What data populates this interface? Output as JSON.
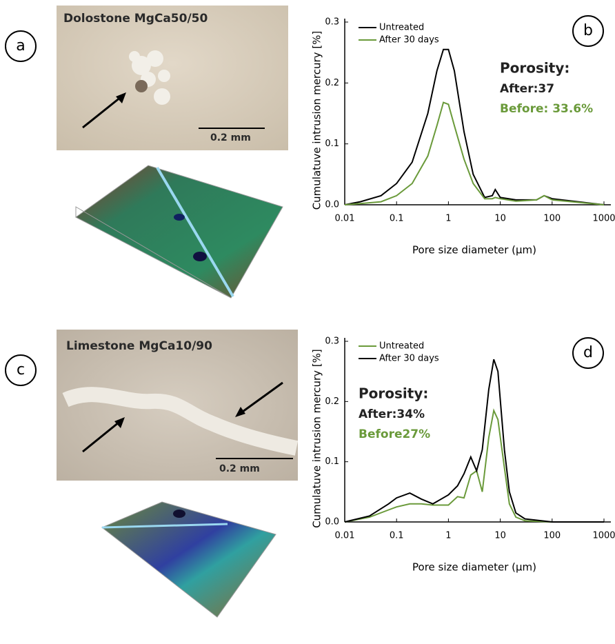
{
  "images": [
    {
      "panel_label": "a",
      "caption": "Dolostone  MgCa50/50",
      "scale_bar": "0.2 mm"
    },
    {
      "panel_label": "c",
      "caption": "Limestone  MgCa10/90",
      "scale_bar": "0.2 mm"
    }
  ],
  "chart_data": [
    {
      "type": "line",
      "panel_label": "b",
      "log_x": true,
      "x_label": "Pore size diameter (µm)",
      "y_label": "Cumulatuve intrusion mercury [%]",
      "xlim": [
        0.01,
        1000
      ],
      "xticks": [
        0.01,
        0.1,
        1,
        10,
        100,
        1000
      ],
      "ylim": [
        0,
        0.3
      ],
      "yticks": [
        {
          "value": 0,
          "label": "0.0"
        },
        0.1,
        0.2,
        0.3
      ],
      "x": [
        0.01,
        0.02,
        0.05,
        0.1,
        0.2,
        0.4,
        0.6,
        0.8,
        1,
        1.3,
        2,
        3,
        5,
        7,
        8,
        10,
        20,
        50,
        70,
        100,
        1000
      ],
      "series": [
        {
          "name": "Untreated",
          "color": "#000000",
          "values": [
            0.0,
            0.005,
            0.015,
            0.035,
            0.07,
            0.15,
            0.22,
            0.255,
            0.255,
            0.22,
            0.12,
            0.05,
            0.012,
            0.015,
            0.025,
            0.012,
            0.008,
            0.008,
            0.015,
            0.01,
            0.0
          ]
        },
        {
          "name": "After 30 days",
          "color": "#6a9a3a",
          "values": [
            0.0,
            0.002,
            0.005,
            0.015,
            0.035,
            0.08,
            0.13,
            0.168,
            0.165,
            0.13,
            0.075,
            0.035,
            0.01,
            0.01,
            0.012,
            0.01,
            0.006,
            0.008,
            0.015,
            0.008,
            0.0
          ]
        }
      ],
      "annotations": [
        {
          "text": "Porosity:",
          "color": "#222222"
        },
        {
          "text": "After:37",
          "color": "#222222"
        },
        {
          "text": "Before: 33.6%",
          "color": "#6a9a3a"
        }
      ]
    },
    {
      "type": "line",
      "panel_label": "d",
      "log_x": true,
      "x_label": "Pore size diameter (µm)",
      "y_label": "Cumulatuve intrusion mercury [%]",
      "xlim": [
        0.01,
        1000
      ],
      "xticks": [
        0.01,
        0.1,
        1,
        10,
        100,
        1000
      ],
      "ylim": [
        0,
        0.3
      ],
      "yticks": [
        {
          "value": 0,
          "label": "0.0"
        },
        0.1,
        0.2,
        0.3
      ],
      "x": [
        0.01,
        0.03,
        0.07,
        0.1,
        0.18,
        0.3,
        0.5,
        1,
        1.5,
        2,
        2.7,
        3.5,
        4.5,
        6,
        7.5,
        9,
        12,
        15,
        20,
        30,
        100,
        1000
      ],
      "series": [
        {
          "name": "Untreated",
          "color": "#6a9a3a",
          "values": [
            0.0,
            0.008,
            0.02,
            0.025,
            0.03,
            0.03,
            0.028,
            0.028,
            0.042,
            0.04,
            0.078,
            0.085,
            0.05,
            0.14,
            0.185,
            0.17,
            0.09,
            0.03,
            0.008,
            0.002,
            0.0,
            0.0
          ]
        },
        {
          "name": "After 30 days",
          "color": "#000000",
          "values": [
            0.0,
            0.01,
            0.03,
            0.04,
            0.048,
            0.038,
            0.03,
            0.045,
            0.06,
            0.08,
            0.108,
            0.085,
            0.12,
            0.22,
            0.27,
            0.25,
            0.12,
            0.05,
            0.015,
            0.005,
            0.0,
            0.0
          ]
        }
      ],
      "annotations": [
        {
          "text": "Porosity:",
          "color": "#222222"
        },
        {
          "text": "After:34%",
          "color": "#222222"
        },
        {
          "text": "Before27%",
          "color": "#6a9a3a"
        }
      ]
    }
  ]
}
